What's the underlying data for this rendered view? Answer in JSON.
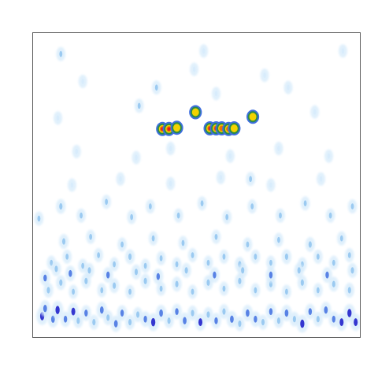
{
  "chart_data": {
    "type": "heatmap",
    "title": "",
    "xlabel": "",
    "ylabel": "",
    "xlim": [
      0,
      1
    ],
    "ylim": [
      0,
      1
    ],
    "grid": false,
    "legend": "none",
    "colormap": [
      "#ffffff",
      "#d6ebfb",
      "#8ec3ee",
      "#3f6fe0",
      "#1515c8",
      "#2a8a4a",
      "#f2d300",
      "#f07000",
      "#e8191e"
    ],
    "frame_color": "#5a5a5a",
    "hotspots": [
      {
        "x": 0.396,
        "y": 0.684,
        "v": 0.95
      },
      {
        "x": 0.416,
        "y": 0.684,
        "v": 0.9
      },
      {
        "x": 0.44,
        "y": 0.688,
        "v": 0.75
      },
      {
        "x": 0.497,
        "y": 0.739,
        "v": 0.7
      },
      {
        "x": 0.541,
        "y": 0.686,
        "v": 0.9
      },
      {
        "x": 0.56,
        "y": 0.686,
        "v": 0.95
      },
      {
        "x": 0.577,
        "y": 0.686,
        "v": 0.85
      },
      {
        "x": 0.598,
        "y": 0.684,
        "v": 0.8
      },
      {
        "x": 0.615,
        "y": 0.686,
        "v": 0.7
      },
      {
        "x": 0.672,
        "y": 0.724,
        "v": 0.65
      }
    ],
    "cells": [
      {
        "x": 0.029,
        "y": 0.07,
        "v": 0.55
      },
      {
        "x": 0.038,
        "y": 0.095,
        "v": 0.45
      },
      {
        "x": 0.062,
        "y": 0.06,
        "v": 0.45
      },
      {
        "x": 0.076,
        "y": 0.09,
        "v": 0.55
      },
      {
        "x": 0.1,
        "y": 0.06,
        "v": 0.4
      },
      {
        "x": 0.124,
        "y": 0.085,
        "v": 0.5
      },
      {
        "x": 0.139,
        "y": 0.055,
        "v": 0.35
      },
      {
        "x": 0.163,
        "y": 0.08,
        "v": 0.4
      },
      {
        "x": 0.187,
        "y": 0.05,
        "v": 0.35
      },
      {
        "x": 0.211,
        "y": 0.09,
        "v": 0.45
      },
      {
        "x": 0.23,
        "y": 0.065,
        "v": 0.35
      },
      {
        "x": 0.254,
        "y": 0.045,
        "v": 0.45
      },
      {
        "x": 0.273,
        "y": 0.08,
        "v": 0.4
      },
      {
        "x": 0.297,
        "y": 0.05,
        "v": 0.35
      },
      {
        "x": 0.321,
        "y": 0.075,
        "v": 0.35
      },
      {
        "x": 0.344,
        "y": 0.06,
        "v": 0.4
      },
      {
        "x": 0.368,
        "y": 0.05,
        "v": 0.55
      },
      {
        "x": 0.392,
        "y": 0.08,
        "v": 0.45
      },
      {
        "x": 0.416,
        "y": 0.055,
        "v": 0.35
      },
      {
        "x": 0.44,
        "y": 0.085,
        "v": 0.4
      },
      {
        "x": 0.464,
        "y": 0.055,
        "v": 0.45
      },
      {
        "x": 0.488,
        "y": 0.08,
        "v": 0.35
      },
      {
        "x": 0.512,
        "y": 0.05,
        "v": 0.5
      },
      {
        "x": 0.536,
        "y": 0.075,
        "v": 0.35
      },
      {
        "x": 0.56,
        "y": 0.055,
        "v": 0.4
      },
      {
        "x": 0.584,
        "y": 0.085,
        "v": 0.35
      },
      {
        "x": 0.608,
        "y": 0.06,
        "v": 0.45
      },
      {
        "x": 0.632,
        "y": 0.045,
        "v": 0.35
      },
      {
        "x": 0.656,
        "y": 0.08,
        "v": 0.45
      },
      {
        "x": 0.68,
        "y": 0.06,
        "v": 0.4
      },
      {
        "x": 0.703,
        "y": 0.05,
        "v": 0.35
      },
      {
        "x": 0.727,
        "y": 0.085,
        "v": 0.4
      },
      {
        "x": 0.751,
        "y": 0.055,
        "v": 0.35
      },
      {
        "x": 0.775,
        "y": 0.08,
        "v": 0.45
      },
      {
        "x": 0.799,
        "y": 0.06,
        "v": 0.35
      },
      {
        "x": 0.823,
        "y": 0.045,
        "v": 0.55
      },
      {
        "x": 0.847,
        "y": 0.085,
        "v": 0.4
      },
      {
        "x": 0.871,
        "y": 0.06,
        "v": 0.35
      },
      {
        "x": 0.895,
        "y": 0.09,
        "v": 0.45
      },
      {
        "x": 0.919,
        "y": 0.06,
        "v": 0.4
      },
      {
        "x": 0.943,
        "y": 0.05,
        "v": 0.5
      },
      {
        "x": 0.967,
        "y": 0.08,
        "v": 0.55
      },
      {
        "x": 0.986,
        "y": 0.05,
        "v": 0.5
      },
      {
        "x": 0.048,
        "y": 0.155,
        "v": 0.35
      },
      {
        "x": 0.086,
        "y": 0.18,
        "v": 0.35
      },
      {
        "x": 0.124,
        "y": 0.15,
        "v": 0.3
      },
      {
        "x": 0.163,
        "y": 0.185,
        "v": 0.35
      },
      {
        "x": 0.211,
        "y": 0.155,
        "v": 0.3
      },
      {
        "x": 0.249,
        "y": 0.17,
        "v": 0.35
      },
      {
        "x": 0.297,
        "y": 0.15,
        "v": 0.3
      },
      {
        "x": 0.344,
        "y": 0.185,
        "v": 0.35
      },
      {
        "x": 0.392,
        "y": 0.16,
        "v": 0.3
      },
      {
        "x": 0.44,
        "y": 0.175,
        "v": 0.35
      },
      {
        "x": 0.488,
        "y": 0.15,
        "v": 0.3
      },
      {
        "x": 0.536,
        "y": 0.18,
        "v": 0.35
      },
      {
        "x": 0.584,
        "y": 0.16,
        "v": 0.3
      },
      {
        "x": 0.632,
        "y": 0.185,
        "v": 0.35
      },
      {
        "x": 0.68,
        "y": 0.155,
        "v": 0.3
      },
      {
        "x": 0.727,
        "y": 0.175,
        "v": 0.35
      },
      {
        "x": 0.775,
        "y": 0.15,
        "v": 0.3
      },
      {
        "x": 0.823,
        "y": 0.18,
        "v": 0.35
      },
      {
        "x": 0.871,
        "y": 0.155,
        "v": 0.3
      },
      {
        "x": 0.919,
        "y": 0.175,
        "v": 0.35
      },
      {
        "x": 0.967,
        "y": 0.155,
        "v": 0.35
      },
      {
        "x": 0.057,
        "y": 0.245,
        "v": 0.3
      },
      {
        "x": 0.105,
        "y": 0.265,
        "v": 0.3
      },
      {
        "x": 0.153,
        "y": 0.235,
        "v": 0.3
      },
      {
        "x": 0.201,
        "y": 0.27,
        "v": 0.3
      },
      {
        "x": 0.249,
        "y": 0.24,
        "v": 0.3
      },
      {
        "x": 0.297,
        "y": 0.265,
        "v": 0.35
      },
      {
        "x": 0.344,
        "y": 0.235,
        "v": 0.3
      },
      {
        "x": 0.392,
        "y": 0.26,
        "v": 0.3
      },
      {
        "x": 0.44,
        "y": 0.24,
        "v": 0.3
      },
      {
        "x": 0.488,
        "y": 0.27,
        "v": 0.3
      },
      {
        "x": 0.536,
        "y": 0.245,
        "v": 0.3
      },
      {
        "x": 0.584,
        "y": 0.265,
        "v": 0.3
      },
      {
        "x": 0.632,
        "y": 0.24,
        "v": 0.35
      },
      {
        "x": 0.68,
        "y": 0.265,
        "v": 0.3
      },
      {
        "x": 0.727,
        "y": 0.245,
        "v": 0.3
      },
      {
        "x": 0.775,
        "y": 0.265,
        "v": 0.35
      },
      {
        "x": 0.823,
        "y": 0.24,
        "v": 0.3
      },
      {
        "x": 0.871,
        "y": 0.265,
        "v": 0.3
      },
      {
        "x": 0.919,
        "y": 0.245,
        "v": 0.3
      },
      {
        "x": 0.967,
        "y": 0.27,
        "v": 0.3
      },
      {
        "x": 0.095,
        "y": 0.315,
        "v": 0.35
      },
      {
        "x": 0.177,
        "y": 0.33,
        "v": 0.3
      },
      {
        "x": 0.273,
        "y": 0.305,
        "v": 0.3
      },
      {
        "x": 0.368,
        "y": 0.325,
        "v": 0.3
      },
      {
        "x": 0.459,
        "y": 0.31,
        "v": 0.3
      },
      {
        "x": 0.56,
        "y": 0.33,
        "v": 0.3
      },
      {
        "x": 0.656,
        "y": 0.305,
        "v": 0.3
      },
      {
        "x": 0.751,
        "y": 0.32,
        "v": 0.3
      },
      {
        "x": 0.847,
        "y": 0.305,
        "v": 0.35
      },
      {
        "x": 0.943,
        "y": 0.325,
        "v": 0.3
      },
      {
        "x": 0.038,
        "y": 0.195,
        "v": 0.4
      },
      {
        "x": 0.072,
        "y": 0.225,
        "v": 0.35
      },
      {
        "x": 0.115,
        "y": 0.21,
        "v": 0.4
      },
      {
        "x": 0.173,
        "y": 0.22,
        "v": 0.35
      },
      {
        "x": 0.23,
        "y": 0.205,
        "v": 0.4
      },
      {
        "x": 0.316,
        "y": 0.215,
        "v": 0.35
      },
      {
        "x": 0.383,
        "y": 0.2,
        "v": 0.4
      },
      {
        "x": 0.469,
        "y": 0.22,
        "v": 0.35
      },
      {
        "x": 0.555,
        "y": 0.205,
        "v": 0.4
      },
      {
        "x": 0.641,
        "y": 0.22,
        "v": 0.35
      },
      {
        "x": 0.727,
        "y": 0.205,
        "v": 0.4
      },
      {
        "x": 0.813,
        "y": 0.22,
        "v": 0.35
      },
      {
        "x": 0.899,
        "y": 0.205,
        "v": 0.4
      },
      {
        "x": 0.976,
        "y": 0.22,
        "v": 0.35
      },
      {
        "x": 0.019,
        "y": 0.39,
        "v": 0.3
      },
      {
        "x": 0.086,
        "y": 0.43,
        "v": 0.35
      },
      {
        "x": 0.148,
        "y": 0.4,
        "v": 0.3
      },
      {
        "x": 0.225,
        "y": 0.445,
        "v": 0.3
      },
      {
        "x": 0.302,
        "y": 0.395,
        "v": 0.3
      },
      {
        "x": 0.359,
        "y": 0.43,
        "v": 0.3
      },
      {
        "x": 0.445,
        "y": 0.4,
        "v": 0.3
      },
      {
        "x": 0.517,
        "y": 0.44,
        "v": 0.3
      },
      {
        "x": 0.593,
        "y": 0.395,
        "v": 0.3
      },
      {
        "x": 0.67,
        "y": 0.43,
        "v": 0.3
      },
      {
        "x": 0.756,
        "y": 0.4,
        "v": 0.3
      },
      {
        "x": 0.832,
        "y": 0.44,
        "v": 0.3
      },
      {
        "x": 0.909,
        "y": 0.4,
        "v": 0.3
      },
      {
        "x": 0.976,
        "y": 0.43,
        "v": 0.3
      },
      {
        "x": 0.12,
        "y": 0.5,
        "v": 0.25
      },
      {
        "x": 0.268,
        "y": 0.52,
        "v": 0.25
      },
      {
        "x": 0.421,
        "y": 0.505,
        "v": 0.25
      },
      {
        "x": 0.574,
        "y": 0.525,
        "v": 0.25
      },
      {
        "x": 0.727,
        "y": 0.5,
        "v": 0.25
      },
      {
        "x": 0.88,
        "y": 0.52,
        "v": 0.25
      },
      {
        "x": 0.134,
        "y": 0.61,
        "v": 0.25
      },
      {
        "x": 0.316,
        "y": 0.59,
        "v": 0.25
      },
      {
        "x": 0.751,
        "y": 0.62,
        "v": 0.25
      },
      {
        "x": 0.904,
        "y": 0.595,
        "v": 0.25
      },
      {
        "x": 0.077,
        "y": 0.72,
        "v": 0.25
      },
      {
        "x": 0.861,
        "y": 0.74,
        "v": 0.25
      },
      {
        "x": 0.325,
        "y": 0.76,
        "v": 0.3
      },
      {
        "x": 0.78,
        "y": 0.82,
        "v": 0.25
      },
      {
        "x": 0.153,
        "y": 0.84,
        "v": 0.25
      },
      {
        "x": 0.493,
        "y": 0.88,
        "v": 0.25
      },
      {
        "x": 0.086,
        "y": 0.93,
        "v": 0.3
      },
      {
        "x": 0.522,
        "y": 0.94,
        "v": 0.25
      },
      {
        "x": 0.947,
        "y": 0.94,
        "v": 0.25
      },
      {
        "x": 0.708,
        "y": 0.86,
        "v": 0.25
      },
      {
        "x": 0.378,
        "y": 0.82,
        "v": 0.3
      },
      {
        "x": 0.56,
        "y": 0.8,
        "v": 0.25
      },
      {
        "x": 0.421,
        "y": 0.62,
        "v": 0.25
      },
      {
        "x": 0.603,
        "y": 0.595,
        "v": 0.25
      },
      {
        "x": 0.665,
        "y": 0.52,
        "v": 0.3
      }
    ]
  }
}
